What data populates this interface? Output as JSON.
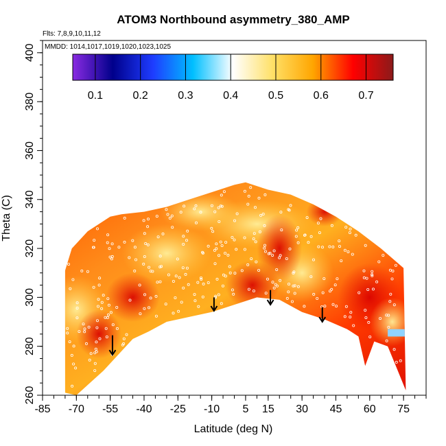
{
  "chart_data": {
    "type": "heatmap",
    "title": "ATOM3 Northbound asymmetry_380_AMP",
    "flights_text": "Flts: 7,8,9,10,11,12",
    "dates_text": "MMDD: 1014,1017,1019,1020,1023,1025",
    "xlabel": "Latitude (deg N)",
    "ylabel": "Theta (C)",
    "xlim": [
      -85,
      85
    ],
    "ylim": [
      260,
      405
    ],
    "x_ticks": [
      -85,
      -70,
      -55,
      -40,
      -25,
      -10,
      5,
      15,
      30,
      45,
      60,
      75
    ],
    "y_ticks": [
      260,
      280,
      300,
      320,
      340,
      360,
      380,
      400
    ],
    "colorbar": {
      "range": [
        0.05,
        0.76
      ],
      "ticks": [
        "0.1",
        "0.2",
        "0.3",
        "0.4",
        "0.5",
        "0.6",
        "0.7"
      ],
      "colors": [
        "#8a2be2",
        "#00008b",
        "#1e3cff",
        "#00bfff",
        "#ffffff",
        "#ffe066",
        "#ffa500",
        "#ff0000",
        "#8b1a1a"
      ]
    },
    "field_value_range": [
      0.45,
      0.72
    ],
    "coverage_top": [
      [
        -75,
        311
      ],
      [
        -72,
        320
      ],
      [
        -65,
        327
      ],
      [
        -55,
        333
      ],
      [
        -50,
        334
      ],
      [
        -40,
        335
      ],
      [
        -30,
        337
      ],
      [
        -20,
        340
      ],
      [
        -10,
        343
      ],
      [
        0,
        346
      ],
      [
        5,
        347
      ],
      [
        15,
        344
      ],
      [
        25,
        342
      ],
      [
        35,
        338
      ],
      [
        45,
        333
      ],
      [
        55,
        327
      ],
      [
        65,
        320
      ],
      [
        75,
        312
      ]
    ],
    "coverage_bottom": [
      [
        -75,
        261
      ],
      [
        -70,
        260
      ],
      [
        -58,
        270
      ],
      [
        -45,
        283
      ],
      [
        -38,
        286
      ],
      [
        -30,
        290
      ],
      [
        -20,
        292
      ],
      [
        -10,
        294
      ],
      [
        0,
        297
      ],
      [
        10,
        300
      ],
      [
        20,
        299
      ],
      [
        30,
        294
      ],
      [
        40,
        291
      ],
      [
        50,
        287
      ],
      [
        55,
        284
      ],
      [
        58,
        272
      ],
      [
        62,
        282
      ],
      [
        68,
        280
      ],
      [
        72,
        271
      ],
      [
        76,
        262
      ]
    ],
    "arrows": [
      {
        "lat": -54,
        "theta_top": 284.5,
        "theta_bottom": 276.5
      },
      {
        "lat": -9,
        "theta_top": 300,
        "theta_bottom": 294.5
      },
      {
        "lat": 16,
        "theta_top": 303,
        "theta_bottom": 297
      },
      {
        "lat": 39,
        "theta_top": 296,
        "theta_bottom": 290
      }
    ]
  }
}
